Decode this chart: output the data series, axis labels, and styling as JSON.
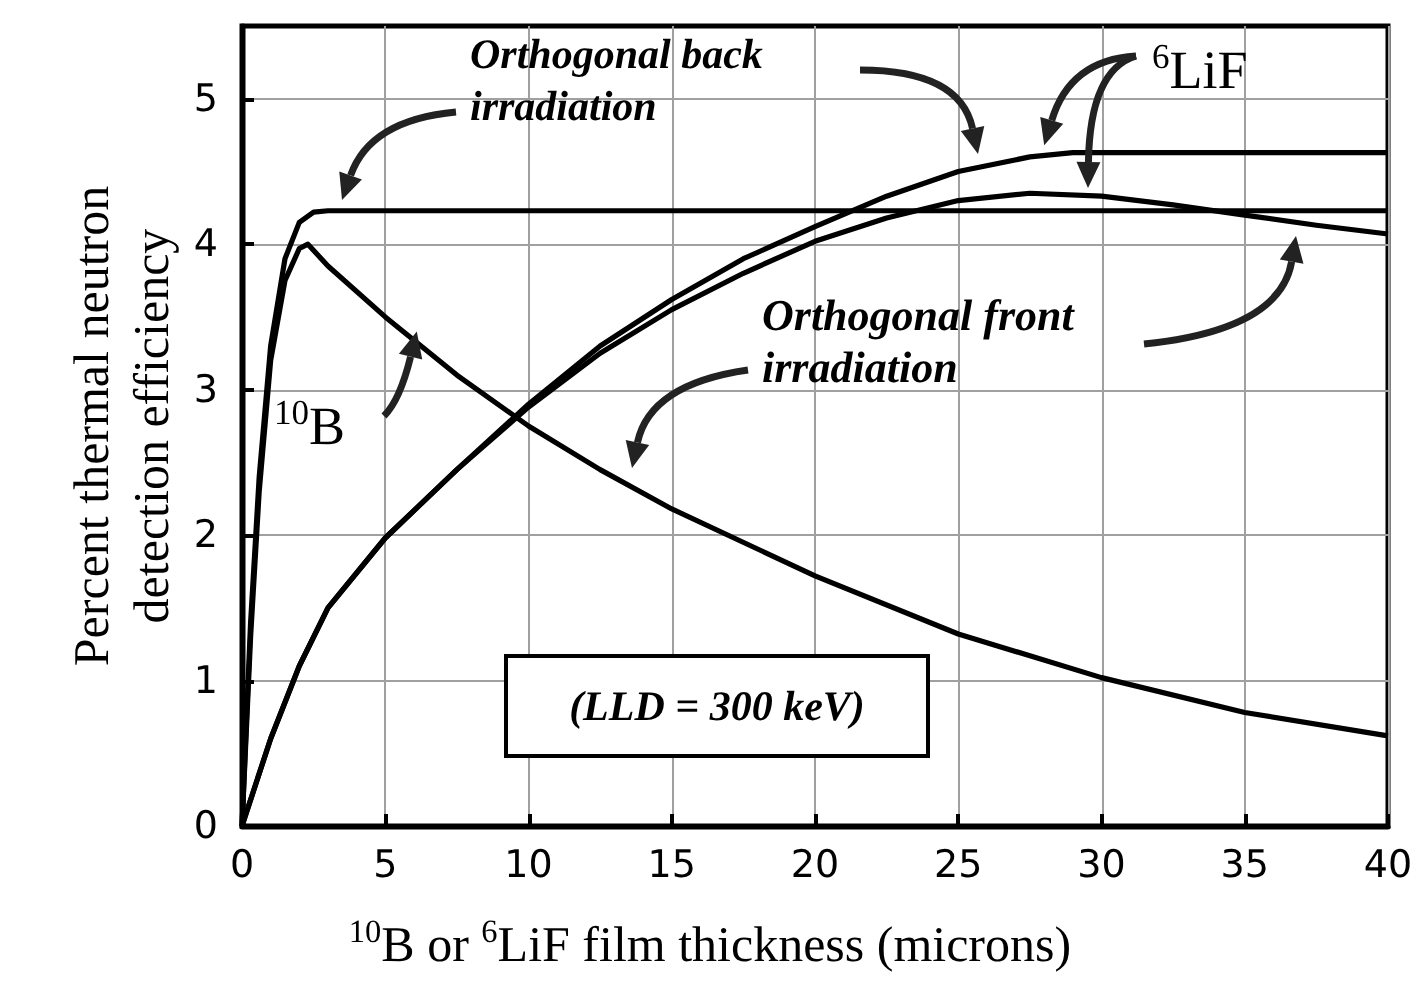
{
  "chart_data": {
    "type": "line",
    "xlabel": "$^{10}$B or $^{6}$LiF film thickness (microns)",
    "ylabel": "Percent thermal  neutron detection efficiency",
    "xlim": [
      0,
      40
    ],
    "xticks": [
      0,
      5,
      10,
      15,
      20,
      25,
      30,
      35,
      40
    ],
    "ylim": [
      0,
      5.5
    ],
    "yticks": [
      0,
      1,
      2,
      3,
      4,
      5
    ],
    "grid": true,
    "marker": "none",
    "line_style": "solid",
    "series": [
      {
        "color": "#000000",
        "x": [
          0,
          0.3,
          0.6,
          1,
          1.5,
          2,
          2.5,
          3,
          10,
          20,
          30,
          40
        ],
        "values": [
          0,
          1.4,
          2.4,
          3.3,
          3.9,
          4.15,
          4.22,
          4.23,
          4.23,
          4.23,
          4.23,
          4.23
        ]
      },
      {
        "color": "#000000",
        "x": [
          0,
          0.3,
          0.6,
          1,
          1.5,
          2,
          2.3,
          3,
          5,
          7.5,
          10,
          12.5,
          15,
          20,
          25,
          30,
          35,
          40
        ],
        "values": [
          0,
          1.3,
          2.3,
          3.2,
          3.75,
          3.97,
          4.0,
          3.85,
          3.5,
          3.1,
          2.75,
          2.45,
          2.18,
          1.72,
          1.32,
          1.02,
          0.78,
          0.62
        ]
      },
      {
        "color": "#000000",
        "x": [
          0,
          1,
          2,
          3,
          5,
          7.5,
          10,
          12.5,
          15,
          17.5,
          20,
          22.5,
          25,
          27.5,
          29,
          35,
          40
        ],
        "values": [
          0,
          0.6,
          1.1,
          1.5,
          1.98,
          2.45,
          2.9,
          3.3,
          3.62,
          3.9,
          4.12,
          4.33,
          4.5,
          4.6,
          4.63,
          4.63,
          4.63
        ]
      },
      {
        "color": "#000000",
        "x": [
          0,
          1,
          2,
          3,
          5,
          7.5,
          10,
          12.5,
          15,
          17.5,
          20,
          22.5,
          25,
          27.5,
          30,
          32.5,
          35,
          37.5,
          40
        ],
        "values": [
          0,
          0.6,
          1.1,
          1.5,
          1.98,
          2.45,
          2.88,
          3.25,
          3.55,
          3.8,
          4.02,
          4.18,
          4.3,
          4.35,
          4.33,
          4.27,
          4.2,
          4.13,
          4.07
        ]
      }
    ],
    "annotations": [
      "Orthogonal back irradiation",
      "Orthogonal front irradiation",
      {
        "text": "$^{10}$B",
        "x": 6.1,
        "y": 3.4
      },
      {
        "text": "$^{6}$LiF",
        "x": 28,
        "y": 4.68
      },
      "(LLD = 300 keV)"
    ]
  }
}
